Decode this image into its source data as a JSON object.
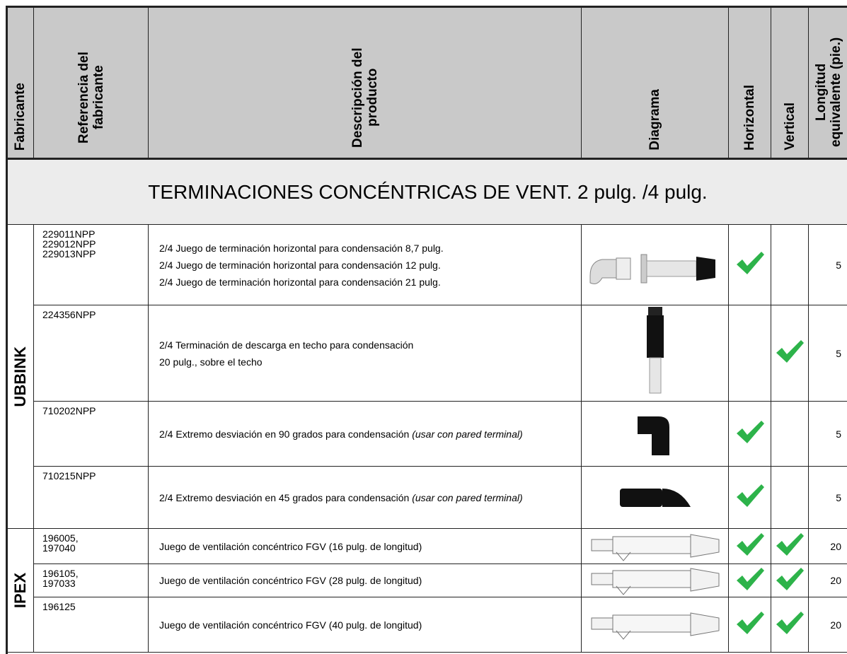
{
  "header": {
    "columns": [
      "Fabricante",
      "Referencia del fabricante",
      "Descripción del producto",
      "Diagrama",
      "Horizontal",
      "Vertical",
      "Longitud equivalente (pie.)"
    ]
  },
  "section_title": "TERMINACIONES CONCÉNTRICAS DE VENT. 2 pulg. /4 pulg.",
  "groups": [
    {
      "manufacturer": "UBBINK",
      "rows": [
        {
          "reference": [
            "229011NPP",
            "229012NPP",
            "229013NPP"
          ],
          "description": [
            "2/4 Juego de terminación horizontal para condensación 8,7 pulg.",
            "2/4 Juego de terminación horizontal para condensación 12 pulg.",
            "2/4 Juego de terminación horizontal para condensación 21 pulg."
          ],
          "horizontal": true,
          "vertical": false,
          "length": "5"
        },
        {
          "reference": [
            "224356NPP"
          ],
          "description": [
            "2/4 Terminación de descarga en techo para condensación",
            "20 pulg., sobre el techo"
          ],
          "horizontal": false,
          "vertical": true,
          "length": "5"
        },
        {
          "reference": [
            "710202NPP"
          ],
          "description": [
            "2/4 Extremo desviación en 90 grados para condensación"
          ],
          "note": "(usar con pared terminal)",
          "horizontal": true,
          "vertical": false,
          "length": "5"
        },
        {
          "reference": [
            "710215NPP"
          ],
          "description": [
            "2/4 Extremo desviación en 45 grados para condensación"
          ],
          "note": "(usar con pared terminal)",
          "horizontal": true,
          "vertical": false,
          "length": "5"
        }
      ]
    },
    {
      "manufacturer": "IPEX",
      "rows": [
        {
          "reference": [
            "196005,",
            "197040"
          ],
          "description": [
            "Juego de ventilación concéntrico FGV (16 pulg. de longitud)"
          ],
          "horizontal": true,
          "vertical": true,
          "length": "20"
        },
        {
          "reference": [
            "196105,",
            "197033"
          ],
          "description": [
            "Juego de ventilación concéntrico FGV (28 pulg. de longitud)"
          ],
          "horizontal": true,
          "vertical": true,
          "length": "20"
        },
        {
          "reference": [
            "196125"
          ],
          "description": [
            "Juego de ventilación concéntrico FGV (40 pulg. de longitud)"
          ],
          "horizontal": true,
          "vertical": true,
          "length": "20"
        }
      ]
    }
  ]
}
